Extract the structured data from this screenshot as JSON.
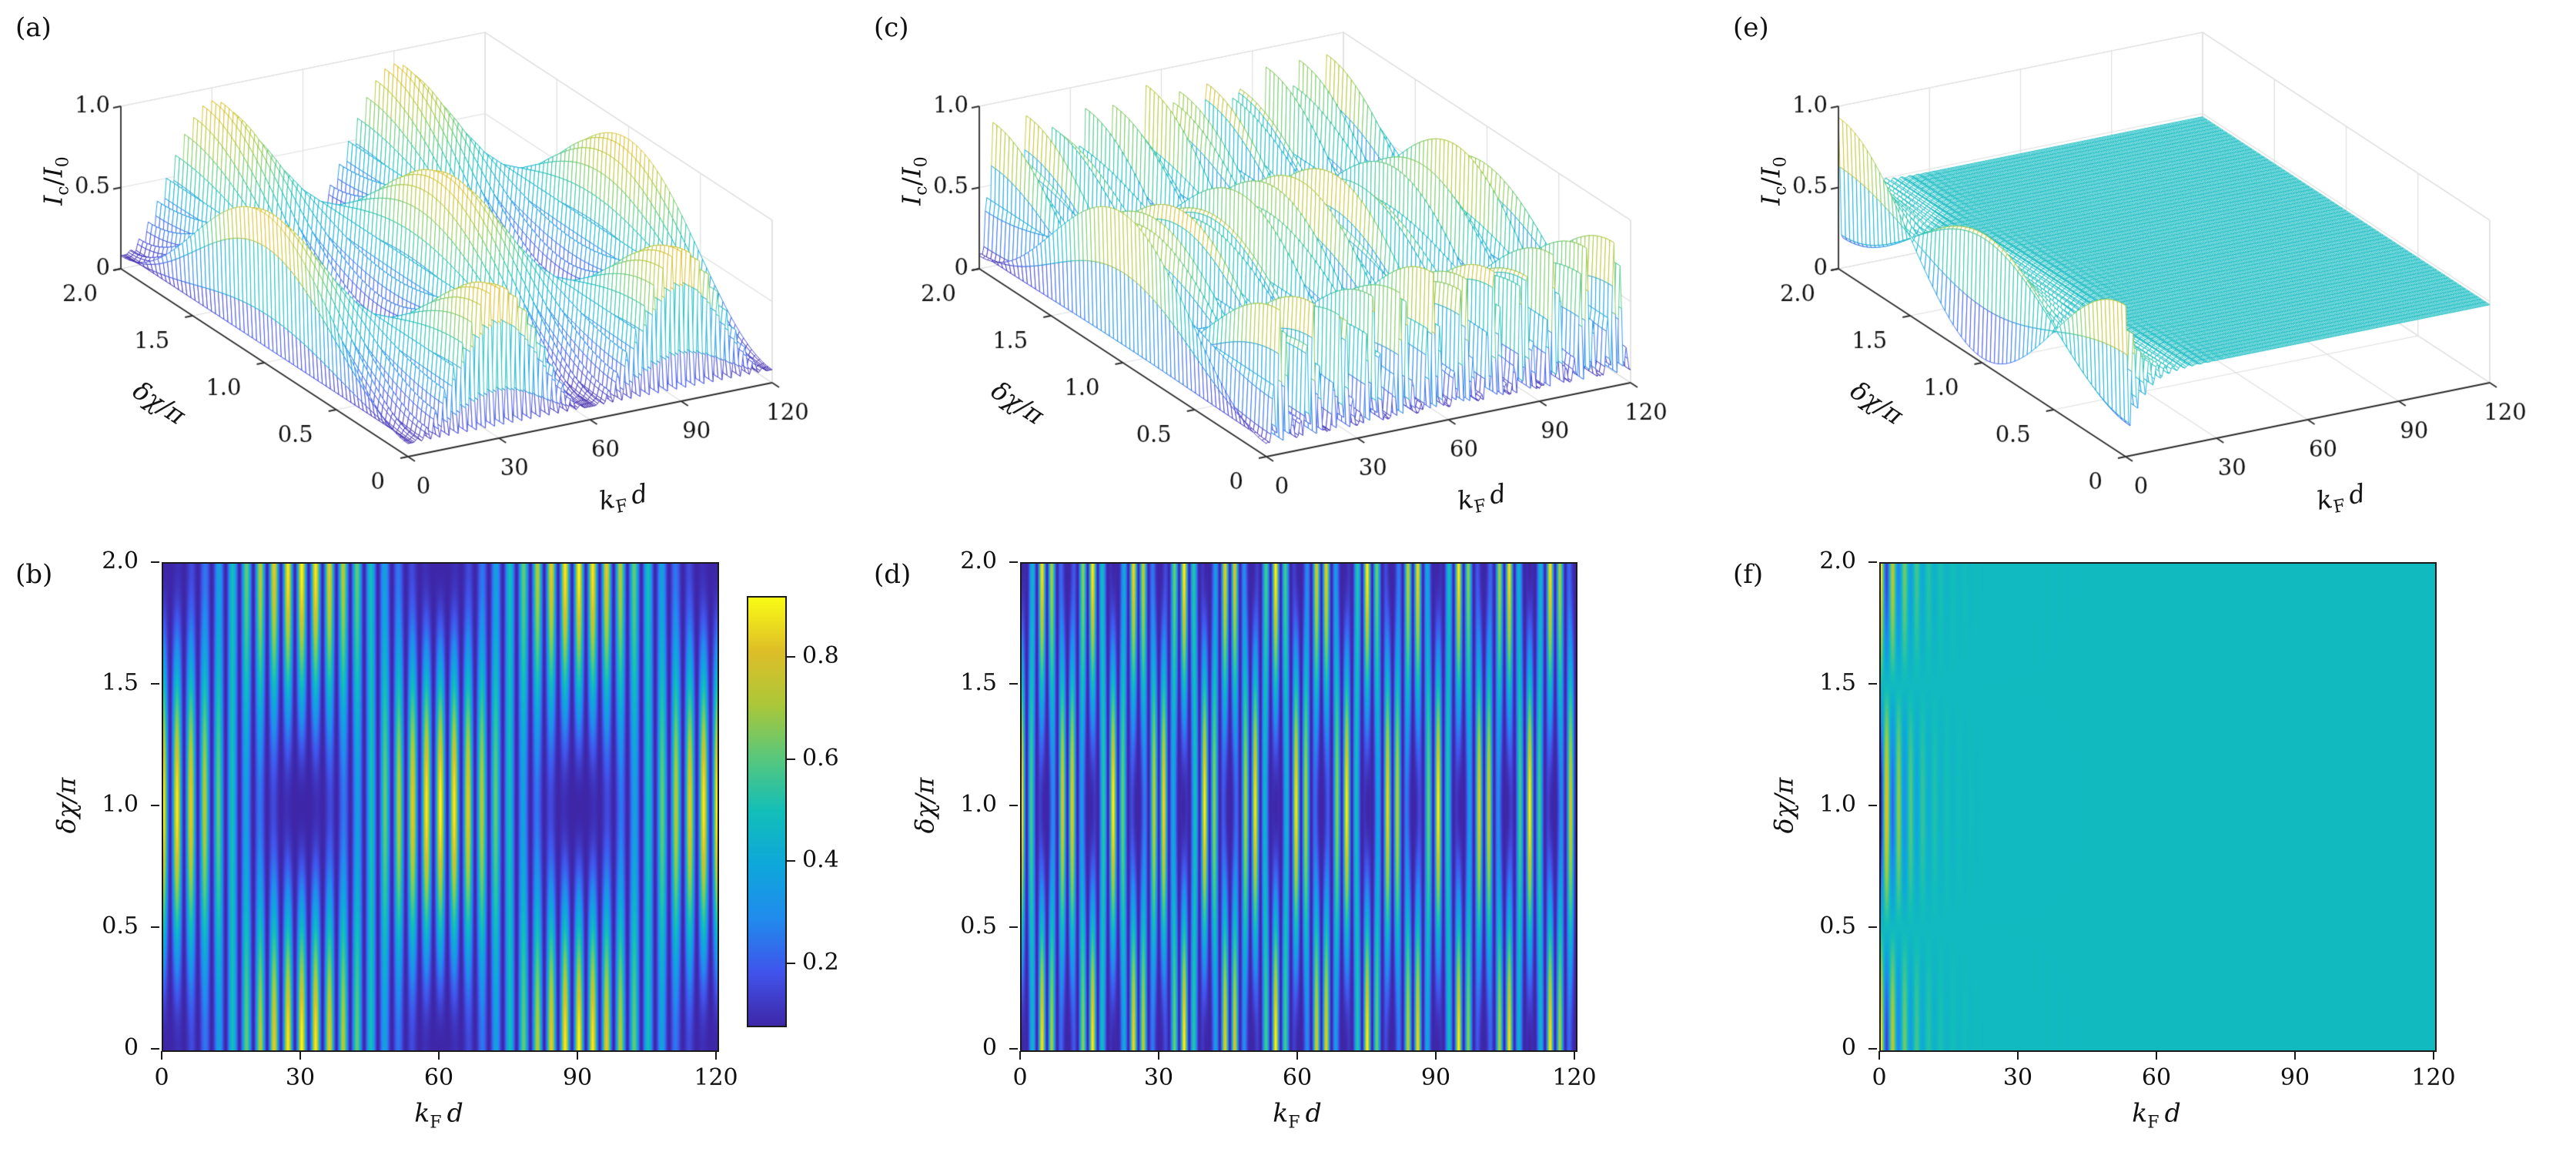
{
  "figure": {
    "background": "#ffffff",
    "panels": [
      "a",
      "b",
      "c",
      "d",
      "e",
      "f"
    ]
  },
  "labels": {
    "x_main": "k",
    "x_sub": "F",
    "x_end": "d",
    "y": "δχ/π",
    "z_i1": "I",
    "z_s1": "c",
    "z_slash": "/",
    "z_i2": "I",
    "z_s2": "0"
  },
  "colormap": {
    "name": "parula",
    "anchors": [
      [
        0.0,
        62,
        38,
        168
      ],
      [
        0.125,
        64,
        84,
        235
      ],
      [
        0.25,
        33,
        139,
        237
      ],
      [
        0.375,
        14,
        167,
        219
      ],
      [
        0.5,
        18,
        190,
        185
      ],
      [
        0.625,
        88,
        199,
        125
      ],
      [
        0.75,
        171,
        199,
        57
      ],
      [
        0.875,
        222,
        190,
        40
      ],
      [
        1.0,
        249,
        251,
        21
      ]
    ]
  },
  "color_scale": {
    "min": 0.08,
    "max": 0.92
  },
  "colorbar": {
    "tick_vals": [
      0.2,
      0.4,
      0.6,
      0.8
    ],
    "tick_labels": [
      "0.2",
      "0.4",
      "0.6",
      "0.8"
    ]
  },
  "chart_data": [
    {
      "id": "a",
      "panel_label": "(a)",
      "type": "surface3d",
      "x_label": "k_F d",
      "y_label": "δχ/π",
      "z_label": "I_c/I_0",
      "x_range": [
        0,
        120
      ],
      "y_range": [
        0,
        2
      ],
      "z_range": [
        0,
        1
      ],
      "x_tick_vals": [
        0,
        30,
        60,
        90,
        120
      ],
      "x_tick_labels": [
        "0",
        "30",
        "60",
        "90",
        "120"
      ],
      "y_tick_vals": [
        0,
        0.5,
        1,
        1.5,
        2
      ],
      "y_tick_labels": [
        "0",
        "0.5",
        "1.0",
        "1.5",
        "2.0"
      ],
      "z_tick_vals": [
        0,
        0.5,
        1
      ],
      "z_tick_labels": [
        "0",
        "0.5",
        "1.0"
      ],
      "model": {
        "type": "beat_checker",
        "base": 0.08,
        "amp": 0.84,
        "beat_period": 60,
        "fast_period": 3,
        "formula": "I/I0 = base + amp*(0.5-0.5*cos(2*pi*k/beat)*cos(pi*chi))*(0.5+0.5*cos(2*pi*k/fast))"
      }
    },
    {
      "id": "b",
      "panel_label": "(b)",
      "type": "heatmap",
      "has_colorbar": true,
      "x_label": "k_F d",
      "y_label": "δχ/π",
      "x_range": [
        0,
        120
      ],
      "y_range": [
        0,
        2
      ],
      "x_tick_vals": [
        0,
        30,
        60,
        90,
        120
      ],
      "x_tick_labels": [
        "0",
        "30",
        "60",
        "90",
        "120"
      ],
      "y_tick_vals": [
        0,
        0.5,
        1,
        1.5,
        2
      ],
      "y_tick_labels": [
        "0",
        "0.5",
        "1.0",
        "1.5",
        "2.0"
      ],
      "model": {
        "type": "beat_checker",
        "base": 0.08,
        "amp": 0.84,
        "beat_period": 60,
        "fast_period": 3,
        "formula": "I/I0 = base + amp*(0.5-0.5*cos(2*pi*k/beat)*cos(pi*chi))*(0.5+0.5*cos(2*pi*k/fast))"
      }
    },
    {
      "id": "c",
      "panel_label": "(c)",
      "type": "surface3d",
      "x_label": "k_F d",
      "y_label": "δχ/π",
      "z_label": "I_c/I_0",
      "x_range": [
        0,
        120
      ],
      "y_range": [
        0,
        2
      ],
      "z_range": [
        0,
        1
      ],
      "x_tick_vals": [
        0,
        30,
        60,
        90,
        120
      ],
      "x_tick_labels": [
        "0",
        "30",
        "60",
        "90",
        "120"
      ],
      "y_tick_vals": [
        0,
        0.5,
        1,
        1.5,
        2
      ],
      "y_tick_labels": [
        "0",
        "0.5",
        "1.0",
        "1.5",
        "2.0"
      ],
      "z_tick_vals": [
        0,
        0.5,
        1
      ],
      "z_tick_labels": [
        "0",
        "0.5",
        "1.0"
      ],
      "model": {
        "type": "beat_checker",
        "base": 0.08,
        "amp": 0.84,
        "beat_period": 10,
        "fast_period": 2.2,
        "formula": "I/I0 = base + amp*(0.5-0.5*cos(2*pi*k/beat)*cos(pi*chi))*(0.5+0.5*cos(2*pi*k/fast))"
      }
    },
    {
      "id": "d",
      "panel_label": "(d)",
      "type": "heatmap",
      "has_colorbar": false,
      "x_label": "k_F d",
      "y_label": "δχ/π",
      "x_range": [
        0,
        120
      ],
      "y_range": [
        0,
        2
      ],
      "x_tick_vals": [
        0,
        30,
        60,
        90,
        120
      ],
      "x_tick_labels": [
        "0",
        "30",
        "60",
        "90",
        "120"
      ],
      "y_tick_vals": [
        0,
        0.5,
        1,
        1.5,
        2
      ],
      "y_tick_labels": [
        "0",
        "0.5",
        "1.0",
        "1.5",
        "2.0"
      ],
      "model": {
        "type": "beat_checker",
        "base": 0.08,
        "amp": 0.84,
        "beat_period": 10,
        "fast_period": 2.2,
        "formula": "I/I0 = base + amp*(0.5-0.5*cos(2*pi*k/beat)*cos(pi*chi))*(0.5+0.5*cos(2*pi*k/fast))"
      }
    },
    {
      "id": "e",
      "panel_label": "(e)",
      "type": "surface3d",
      "x_label": "k_F d",
      "y_label": "δχ/π",
      "z_label": "I_c/I_0",
      "x_range": [
        0,
        120
      ],
      "y_range": [
        0,
        2
      ],
      "z_range": [
        0,
        1
      ],
      "x_tick_vals": [
        0,
        30,
        60,
        90,
        120
      ],
      "x_tick_labels": [
        "0",
        "30",
        "60",
        "90",
        "120"
      ],
      "y_tick_vals": [
        0,
        0.5,
        1,
        1.5,
        2
      ],
      "y_tick_labels": [
        "0",
        "0.5",
        "1.0",
        "1.5",
        "2.0"
      ],
      "z_tick_vals": [
        0,
        0.5,
        1
      ],
      "z_tick_labels": [
        "0",
        "0.5",
        "1.0"
      ],
      "model": {
        "type": "decay_osc",
        "flat": 0.48,
        "amp": 0.45,
        "decay_length": 5,
        "fast_period": 2.6,
        "formula": "I/I0 = flat + amp*exp(-k/decay)*cos(pi*chi)*cos(2*pi*k/fast)"
      }
    },
    {
      "id": "f",
      "panel_label": "(f)",
      "type": "heatmap",
      "has_colorbar": false,
      "x_label": "k_F d",
      "y_label": "δχ/π",
      "x_range": [
        0,
        120
      ],
      "y_range": [
        0,
        2
      ],
      "x_tick_vals": [
        0,
        30,
        60,
        90,
        120
      ],
      "x_tick_labels": [
        "0",
        "30",
        "60",
        "90",
        "120"
      ],
      "y_tick_vals": [
        0,
        0.5,
        1,
        1.5,
        2
      ],
      "y_tick_labels": [
        "0",
        "0.5",
        "1.0",
        "1.5",
        "2.0"
      ],
      "model": {
        "type": "decay_osc",
        "flat": 0.48,
        "amp": 0.45,
        "decay_length": 5,
        "fast_period": 2.6,
        "formula": "I/I0 = flat + amp*exp(-k/decay)*cos(pi*chi)*cos(2*pi*k/fast)"
      }
    }
  ]
}
